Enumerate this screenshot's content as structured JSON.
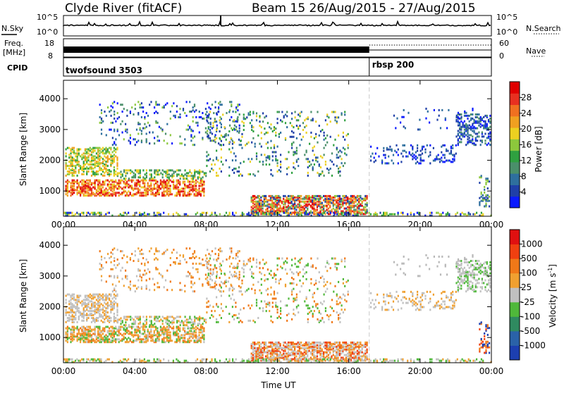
{
  "header": {
    "station": "Clyde River (fitACF)",
    "beam_dates": "Beam 15 26/Aug/2015 - 27/Aug/2015"
  },
  "top_panels": {
    "nsky": {
      "left_label": "N.Sky",
      "left_ticks": [
        "10^5",
        "10^0"
      ],
      "right_label": "N.Search",
      "right_ticks": [
        "10^5",
        "10^0"
      ]
    },
    "freq": {
      "left_label_line1": "Freq.",
      "left_label_line2": "[MHz]",
      "left_ticks": [
        "18",
        "8"
      ],
      "right_label": "Nave",
      "right_ticks": [
        "60",
        "0"
      ]
    },
    "cpid": {
      "label": "CPID",
      "segments": [
        {
          "name": "twofsound 3503",
          "start_hour": 0,
          "end_hour": 17.15
        },
        {
          "name": "rbsp 200",
          "start_hour": 17.15,
          "end_hour": 24
        }
      ]
    }
  },
  "chart_data": [
    {
      "type": "heatmap",
      "panel": "power",
      "ylabel": "Slant Range [km]",
      "xlabel": "Time UT",
      "xlim_hours": [
        0,
        24
      ],
      "ylim_km": [
        180,
        4600
      ],
      "y_ticks": [
        "1000",
        "2000",
        "3000",
        "4000"
      ],
      "x_ticks": [
        "00:00",
        "04:00",
        "08:00",
        "12:00",
        "16:00",
        "20:00",
        "00:00"
      ],
      "colorbar": {
        "label": "Power [dB]",
        "ticks": [
          "28",
          "24",
          "20",
          "16",
          "12",
          "8",
          "4"
        ],
        "levels": [
          "#0a1aff",
          "#1f3fa8",
          "#2e6f9e",
          "#4a8f6a",
          "#2fa040",
          "#8cc83c",
          "#ecd020",
          "#f0a020",
          "#f07020",
          "#e83020",
          "#e00000"
        ]
      }
    },
    {
      "type": "heatmap",
      "panel": "velocity",
      "ylabel": "Slant Range [km]",
      "xlabel": "Time UT",
      "xlim_hours": [
        0,
        24
      ],
      "ylim_km": [
        180,
        4600
      ],
      "y_ticks": [
        "1000",
        "2000",
        "3000",
        "4000"
      ],
      "x_ticks": [
        "00:00",
        "04:00",
        "08:00",
        "12:00",
        "16:00",
        "20:00",
        "00:00"
      ],
      "colorbar": {
        "label_main": "Velocity [m s",
        "label_sup": "-1",
        "label_end": "]",
        "ticks": [
          "1000",
          "500",
          "100",
          "25",
          "-25",
          "-100",
          "-500",
          "-1000"
        ],
        "levels": [
          "#1c3fb0",
          "#2a62a8",
          "#2f8a60",
          "#4fb83a",
          "#c0c0c0",
          "#f0a030",
          "#f07818",
          "#f04010",
          "#e01010"
        ]
      }
    }
  ],
  "colors": {
    "ground_scatter": "#b8b8b8",
    "series_line": "#000000",
    "mode_change_line": "#c8c8c8"
  }
}
